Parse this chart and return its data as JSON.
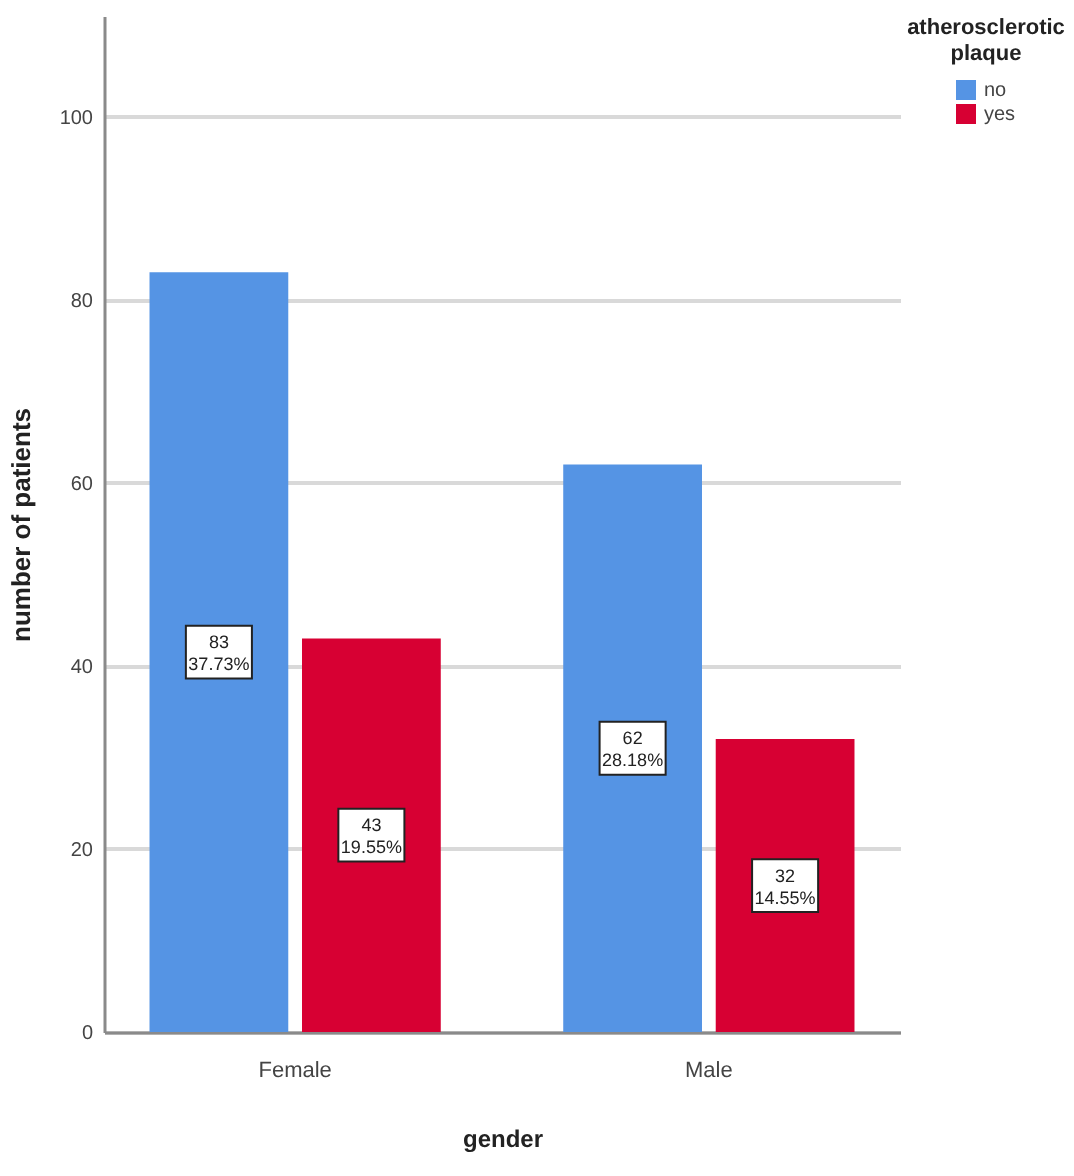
{
  "chart_data": {
    "type": "bar",
    "xlabel": "gender",
    "ylabel": "number of patients",
    "legend_title": "atherosclerotic plaque",
    "categories": [
      "Female",
      "Male"
    ],
    "series": [
      {
        "name": "no",
        "color": "#5594e4",
        "values": [
          83,
          62
        ],
        "value_labels": [
          "83\n37.73%",
          "62\n28.18%"
        ]
      },
      {
        "name": "yes",
        "color": "#d70033",
        "values": [
          43,
          32
        ],
        "value_labels": [
          "43\n19.55%",
          "32\n14.55%"
        ]
      }
    ],
    "ylim": [
      0,
      111
    ],
    "yticks": [
      0,
      20,
      40,
      60,
      80,
      100
    ],
    "grid": "y",
    "legend": "top right"
  }
}
